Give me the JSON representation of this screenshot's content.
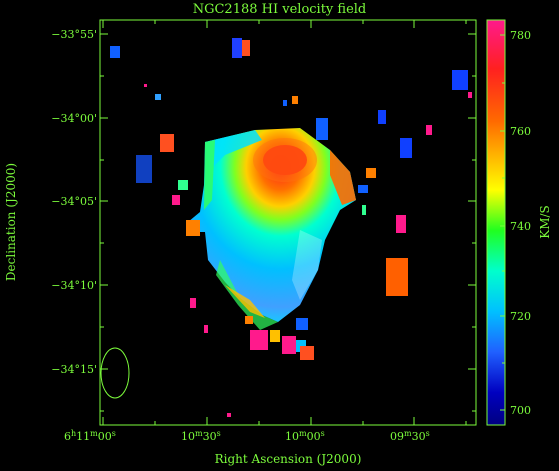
{
  "title": "NGC2188   HI velocity field",
  "xlabel": "Right Ascension (J2000)",
  "ylabel": "Declination (J2000)",
  "xticks": [
    {
      "main": "6",
      "sup1": "h",
      "mid": "11",
      "sup2": "m",
      "end": "00",
      "sup3": "s"
    },
    {
      "main": "10",
      "sup1": "m",
      "end": "30",
      "sup2": "s"
    },
    {
      "main": "10",
      "sup1": "m",
      "end": "00",
      "sup2": "s"
    },
    {
      "main": "09",
      "sup1": "m",
      "end": "30",
      "sup2": "s"
    }
  ],
  "yticks": [
    "−33°55'",
    "−34°00'",
    "−34°05'",
    "−34°10'",
    "−34°15'"
  ],
  "colorbar": {
    "unit": "KM/S",
    "ticks": [
      "780",
      "760",
      "740",
      "720",
      "700"
    ],
    "stops": [
      "#ff1a8c",
      "#ff2020",
      "#ff6a00",
      "#ffb000",
      "#ffff00",
      "#20ff20",
      "#00ffcc",
      "#00c0ff",
      "#2060ff",
      "#0000c0",
      "#000080"
    ]
  },
  "colors": {
    "axis": "#7cfc3c",
    "background": "#000000"
  }
}
